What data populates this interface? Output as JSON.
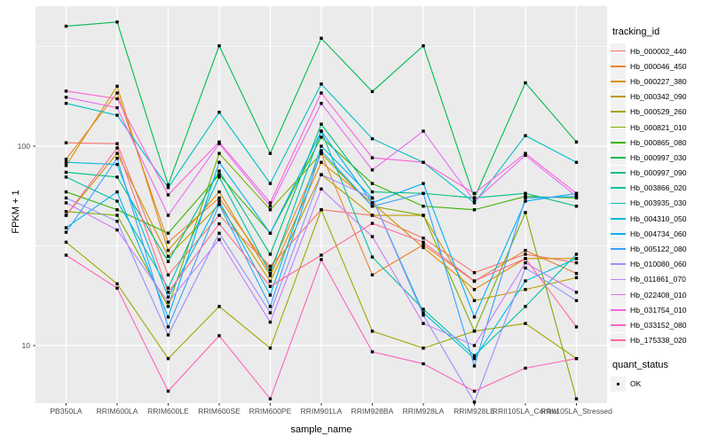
{
  "chart_data": {
    "type": "line",
    "title": "",
    "xlabel": "sample_name",
    "ylabel": "FPKM + 1",
    "y_scale": "log10",
    "ylim": [
      5.14,
      504
    ],
    "y_ticks": [
      100,
      10
    ],
    "y_minor_gridlines": [
      316.2,
      31.62
    ],
    "grid": true,
    "legend_position": "right",
    "legend_title": "tracking_id",
    "quant_legend": {
      "title": "quant_status",
      "items": [
        {
          "label": "OK",
          "marker": "black-square"
        }
      ]
    },
    "point_marker": "black-square",
    "categories": [
      "PB350LA",
      "RRIM600LA",
      "RRIM600LE",
      "RRIM600SE",
      "RRIM600PE",
      "RRIM901LA",
      "RRIM928BA",
      "RRIM928LA",
      "RRIM928LE",
      "RRII105LA_Control",
      "RRII105LA_Stressed"
    ],
    "series": [
      {
        "name": "Hb_000002_440",
        "color": "#F8766D",
        "values": [
          104,
          103,
          22.6,
          45,
          25,
          48,
          45,
          34.6,
          23.2,
          28.7,
          26
        ]
      },
      {
        "name": "Hb_000046_450",
        "color": "#EA8331",
        "values": [
          86,
          185,
          33,
          55,
          24,
          92,
          22.6,
          32,
          21,
          30,
          23
        ]
      },
      {
        "name": "Hb_000227_380",
        "color": "#D89000",
        "values": [
          80,
          200,
          30,
          59,
          22.4,
          83,
          52,
          31,
          19.1,
          27.3,
          27.3
        ]
      },
      {
        "name": "Hb_000342_090",
        "color": "#C09B00",
        "values": [
          45,
          92,
          28,
          51,
          21,
          72,
          45,
          45,
          16.8,
          19.1,
          21.9
        ]
      },
      {
        "name": "Hb_000529_260",
        "color": "#A3A500",
        "values": [
          33,
          20.4,
          8.6,
          15.7,
          9.7,
          48,
          11.8,
          9.7,
          11.8,
          12.9,
          8.6
        ]
      },
      {
        "name": "Hb_000821_010",
        "color": "#7CAE00",
        "values": [
          47,
          45,
          15.7,
          92,
          48,
          92,
          50,
          45,
          11.8,
          46.5,
          5.4
        ]
      },
      {
        "name": "Hb_000865_080",
        "color": "#39B600",
        "values": [
          59,
          48,
          36.6,
          72,
          36.6,
          111,
          65,
          50,
          48,
          56,
          55
        ]
      },
      {
        "name": "Hb_000997_030",
        "color": "#00BB4E",
        "values": [
          400,
          420,
          64,
          319,
          92,
          348,
          188,
          319,
          55,
          208,
          105
        ]
      },
      {
        "name": "Hb_000997_090",
        "color": "#00BF7D",
        "values": [
          74,
          70,
          26.4,
          75,
          28.7,
          129,
          59,
          58,
          55,
          58,
          50
        ]
      },
      {
        "name": "Hb_003866_020",
        "color": "#00C1A3",
        "values": [
          70,
          53,
          19.4,
          70,
          23,
          119,
          27.8,
          15.2,
          8.9,
          15.7,
          28.7
        ]
      },
      {
        "name": "Hb_003935_030",
        "color": "#00BFC4",
        "values": [
          164,
          143,
          62,
          148,
          65,
          205,
          109,
          83,
          52,
          113,
          83
        ]
      },
      {
        "name": "Hb_004310_050",
        "color": "#00BAE0",
        "values": [
          83,
          81,
          17.5,
          53,
          17.9,
          100,
          55,
          14.6,
          8.6,
          21.1,
          27.3
        ]
      },
      {
        "name": "Hb_004734_060",
        "color": "#00B0F6",
        "values": [
          39,
          59,
          13.9,
          83,
          36.6,
          119,
          52,
          65,
          13.9,
          53,
          58
        ]
      },
      {
        "name": "Hb_005122_080",
        "color": "#35A2FF",
        "values": [
          37,
          87,
          12.4,
          51,
          15.7,
          95,
          50,
          58,
          7.9,
          55,
          56
        ]
      },
      {
        "name": "Hb_010080_060",
        "color": "#9590FF",
        "values": [
          55,
          42,
          11.3,
          36.6,
          14.6,
          72,
          55,
          14.2,
          5.2,
          24.5,
          16.8
        ]
      },
      {
        "name": "Hb_011861_070",
        "color": "#C77CFF",
        "values": [
          52,
          38,
          16.5,
          34,
          13.1,
          61,
          35.2,
          12.9,
          10,
          26,
          18.5
        ]
      },
      {
        "name": "Hb_022408_010",
        "color": "#E76BF3",
        "values": [
          176,
          156,
          45,
          103,
          50,
          164,
          76,
          119,
          53,
          90,
          56
        ]
      },
      {
        "name": "Hb_031754_010",
        "color": "#FA62DB",
        "values": [
          189,
          173,
          57,
          105,
          52,
          185,
          87.5,
          83,
          58,
          92,
          58
        ]
      },
      {
        "name": "Hb_033152_080",
        "color": "#FF62BC",
        "values": [
          28.4,
          19.4,
          5.9,
          11.2,
          5.4,
          27,
          9.3,
          8.1,
          5.9,
          7.7,
          8.6
        ]
      },
      {
        "name": "Hb_175338_020",
        "color": "#FF6A98",
        "values": [
          45,
          98,
          18.5,
          40.8,
          19.8,
          28.4,
          41,
          33,
          21.1,
          27.3,
          12.4
        ]
      }
    ],
    "colors": {
      "panel_background": "#EBEBEB",
      "gridline": "#FFFFFF",
      "tick_label": "#4D4D4D",
      "tick_mark": "#333333",
      "axis_title": "#000000",
      "legend_key_background": "#F2F2F2",
      "point": "#000000"
    }
  }
}
